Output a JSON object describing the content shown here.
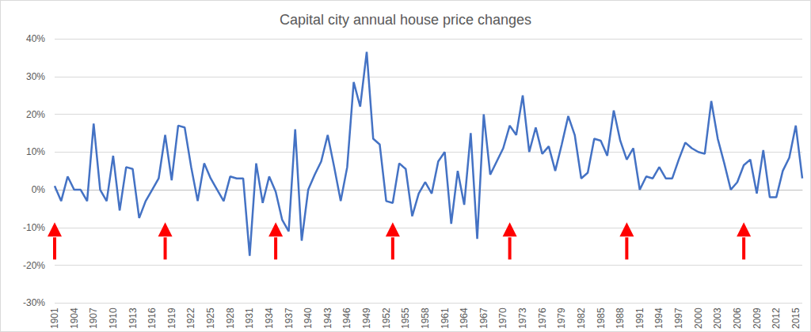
{
  "chart_data": {
    "type": "line",
    "title": "Capital city annual house price changes",
    "x": [
      1901,
      1902,
      1903,
      1904,
      1905,
      1906,
      1907,
      1908,
      1909,
      1910,
      1911,
      1912,
      1913,
      1914,
      1915,
      1916,
      1917,
      1918,
      1919,
      1920,
      1921,
      1922,
      1923,
      1924,
      1925,
      1926,
      1927,
      1928,
      1929,
      1930,
      1931,
      1932,
      1933,
      1934,
      1935,
      1936,
      1937,
      1938,
      1939,
      1940,
      1941,
      1942,
      1943,
      1944,
      1945,
      1946,
      1947,
      1948,
      1949,
      1950,
      1951,
      1952,
      1953,
      1954,
      1955,
      1956,
      1957,
      1958,
      1959,
      1960,
      1961,
      1962,
      1963,
      1964,
      1965,
      1966,
      1967,
      1968,
      1969,
      1970,
      1971,
      1972,
      1973,
      1974,
      1975,
      1976,
      1977,
      1978,
      1979,
      1980,
      1981,
      1982,
      1983,
      1984,
      1985,
      1986,
      1987,
      1988,
      1989,
      1990,
      1991,
      1992,
      1993,
      1994,
      1995,
      1996,
      1997,
      1998,
      1999,
      2000,
      2001,
      2002,
      2003,
      2004,
      2005,
      2006,
      2007,
      2008,
      2009,
      2010,
      2011,
      2012,
      2013,
      2014,
      2015,
      2016
    ],
    "values": [
      1,
      -3,
      3.5,
      0,
      0,
      -3,
      17.5,
      0,
      -3,
      9,
      -5.5,
      6,
      5.5,
      -7.5,
      -3,
      0,
      3,
      14.5,
      2.5,
      17,
      16.5,
      6,
      -3,
      7,
      3,
      0,
      -3,
      3.5,
      3,
      3,
      -17.5,
      7,
      -3.5,
      3.5,
      -0.5,
      -8,
      -11,
      16,
      -13.5,
      0,
      4,
      7.5,
      14.5,
      6,
      -3,
      6,
      28.5,
      22,
      36.5,
      13.5,
      12,
      -3,
      -3.5,
      7,
      5.5,
      -7,
      -1,
      2,
      -1,
      7.5,
      10,
      -9,
      5,
      -4,
      15,
      -13,
      20,
      4,
      7.5,
      11,
      17,
      14.5,
      25,
      10,
      16.5,
      9.5,
      11.5,
      5,
      12,
      19.5,
      14.5,
      3,
      4.5,
      13.5,
      13,
      9,
      21,
      13,
      8,
      11,
      0,
      3.5,
      3,
      6,
      3,
      3,
      8,
      12.5,
      11,
      10,
      9.5,
      23.5,
      13.5,
      7,
      0,
      2,
      6.5,
      8,
      -1,
      10.5,
      -2,
      -2,
      5,
      8.5,
      17,
      3
    ],
    "color": "#4472c4",
    "xlim": [
      1901,
      2016
    ],
    "xticks": [
      1901,
      1904,
      1907,
      1910,
      1913,
      1916,
      1919,
      1922,
      1925,
      1928,
      1931,
      1934,
      1937,
      1940,
      1943,
      1946,
      1949,
      1952,
      1955,
      1958,
      1961,
      1964,
      1967,
      1970,
      1973,
      1976,
      1979,
      1982,
      1985,
      1988,
      1991,
      1994,
      1997,
      2000,
      2003,
      2006,
      2009,
      2012,
      2015
    ],
    "ylim": [
      -30,
      40
    ],
    "yticks": [
      {
        "value": -30,
        "label": "-30%"
      },
      {
        "value": -20,
        "label": "-20%"
      },
      {
        "value": -10,
        "label": "-10%"
      },
      {
        "value": 0,
        "label": "0%"
      },
      {
        "value": 10,
        "label": "10%"
      },
      {
        "value": 20,
        "label": "20%"
      },
      {
        "value": 30,
        "label": "30%"
      },
      {
        "value": 40,
        "label": "40%"
      }
    ],
    "grid": true,
    "annotations": [
      {
        "x": 1901,
        "marker": "arrow"
      },
      {
        "x": 1918,
        "marker": "arrow"
      },
      {
        "x": 1935,
        "marker": "arrow"
      },
      {
        "x": 1953,
        "marker": "arrow"
      },
      {
        "x": 1971,
        "marker": "arrow"
      },
      {
        "x": 1989,
        "marker": "arrow"
      },
      {
        "x": 2007,
        "marker": "arrow"
      }
    ]
  }
}
